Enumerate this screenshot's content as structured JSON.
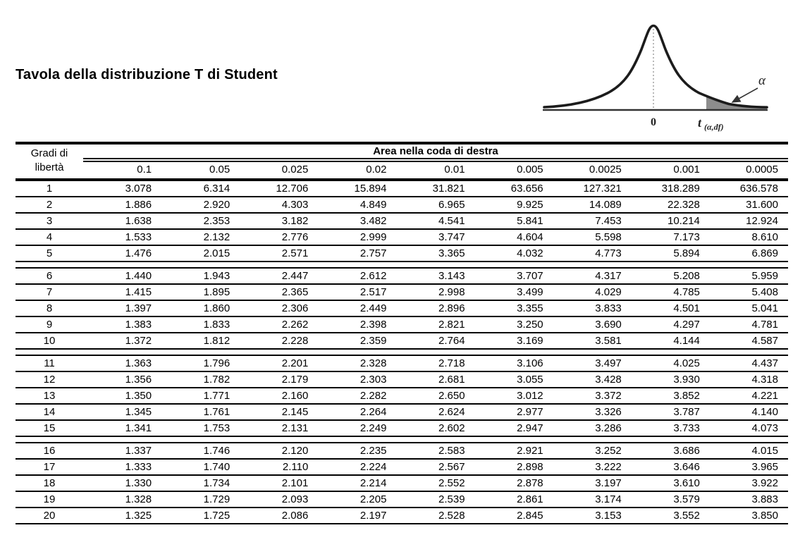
{
  "title": "Tavola della distribuzione T di Student",
  "figure": {
    "alpha_label": "α",
    "zero_label": "0",
    "t_label_base": "t",
    "t_label_sub": "(α,df)"
  },
  "colors": {
    "line": "#1c1c1c",
    "shade": "#8d8d8d",
    "axis": "#333333"
  },
  "table": {
    "row_header_line1": "Gradi di",
    "row_header_line2": "libertà",
    "col_group_header": "Area nella coda di destra",
    "group_size": 5,
    "columns": [
      "0.1",
      "0.05",
      "0.025",
      "0.02",
      "0.01",
      "0.005",
      "0.0025",
      "0.001",
      "0.0005"
    ],
    "rows": [
      {
        "df": "1",
        "values": [
          "3.078",
          "6.314",
          "12.706",
          "15.894",
          "31.821",
          "63.656",
          "127.321",
          "318.289",
          "636.578"
        ]
      },
      {
        "df": "2",
        "values": [
          "1.886",
          "2.920",
          "4.303",
          "4.849",
          "6.965",
          "9.925",
          "14.089",
          "22.328",
          "31.600"
        ]
      },
      {
        "df": "3",
        "values": [
          "1.638",
          "2.353",
          "3.182",
          "3.482",
          "4.541",
          "5.841",
          "7.453",
          "10.214",
          "12.924"
        ]
      },
      {
        "df": "4",
        "values": [
          "1.533",
          "2.132",
          "2.776",
          "2.999",
          "3.747",
          "4.604",
          "5.598",
          "7.173",
          "8.610"
        ]
      },
      {
        "df": "5",
        "values": [
          "1.476",
          "2.015",
          "2.571",
          "2.757",
          "3.365",
          "4.032",
          "4.773",
          "5.894",
          "6.869"
        ]
      },
      {
        "df": "6",
        "values": [
          "1.440",
          "1.943",
          "2.447",
          "2.612",
          "3.143",
          "3.707",
          "4.317",
          "5.208",
          "5.959"
        ]
      },
      {
        "df": "7",
        "values": [
          "1.415",
          "1.895",
          "2.365",
          "2.517",
          "2.998",
          "3.499",
          "4.029",
          "4.785",
          "5.408"
        ]
      },
      {
        "df": "8",
        "values": [
          "1.397",
          "1.860",
          "2.306",
          "2.449",
          "2.896",
          "3.355",
          "3.833",
          "4.501",
          "5.041"
        ]
      },
      {
        "df": "9",
        "values": [
          "1.383",
          "1.833",
          "2.262",
          "2.398",
          "2.821",
          "3.250",
          "3.690",
          "4.297",
          "4.781"
        ]
      },
      {
        "df": "10",
        "values": [
          "1.372",
          "1.812",
          "2.228",
          "2.359",
          "2.764",
          "3.169",
          "3.581",
          "4.144",
          "4.587"
        ]
      },
      {
        "df": "11",
        "values": [
          "1.363",
          "1.796",
          "2.201",
          "2.328",
          "2.718",
          "3.106",
          "3.497",
          "4.025",
          "4.437"
        ]
      },
      {
        "df": "12",
        "values": [
          "1.356",
          "1.782",
          "2.179",
          "2.303",
          "2.681",
          "3.055",
          "3.428",
          "3.930",
          "4.318"
        ]
      },
      {
        "df": "13",
        "values": [
          "1.350",
          "1.771",
          "2.160",
          "2.282",
          "2.650",
          "3.012",
          "3.372",
          "3.852",
          "4.221"
        ]
      },
      {
        "df": "14",
        "values": [
          "1.345",
          "1.761",
          "2.145",
          "2.264",
          "2.624",
          "2.977",
          "3.326",
          "3.787",
          "4.140"
        ]
      },
      {
        "df": "15",
        "values": [
          "1.341",
          "1.753",
          "2.131",
          "2.249",
          "2.602",
          "2.947",
          "3.286",
          "3.733",
          "4.073"
        ]
      },
      {
        "df": "16",
        "values": [
          "1.337",
          "1.746",
          "2.120",
          "2.235",
          "2.583",
          "2.921",
          "3.252",
          "3.686",
          "4.015"
        ]
      },
      {
        "df": "17",
        "values": [
          "1.333",
          "1.740",
          "2.110",
          "2.224",
          "2.567",
          "2.898",
          "3.222",
          "3.646",
          "3.965"
        ]
      },
      {
        "df": "18",
        "values": [
          "1.330",
          "1.734",
          "2.101",
          "2.214",
          "2.552",
          "2.878",
          "3.197",
          "3.610",
          "3.922"
        ]
      },
      {
        "df": "19",
        "values": [
          "1.328",
          "1.729",
          "2.093",
          "2.205",
          "2.539",
          "2.861",
          "3.174",
          "3.579",
          "3.883"
        ]
      },
      {
        "df": "20",
        "values": [
          "1.325",
          "1.725",
          "2.086",
          "2.197",
          "2.528",
          "2.845",
          "3.153",
          "3.552",
          "3.850"
        ]
      }
    ]
  }
}
